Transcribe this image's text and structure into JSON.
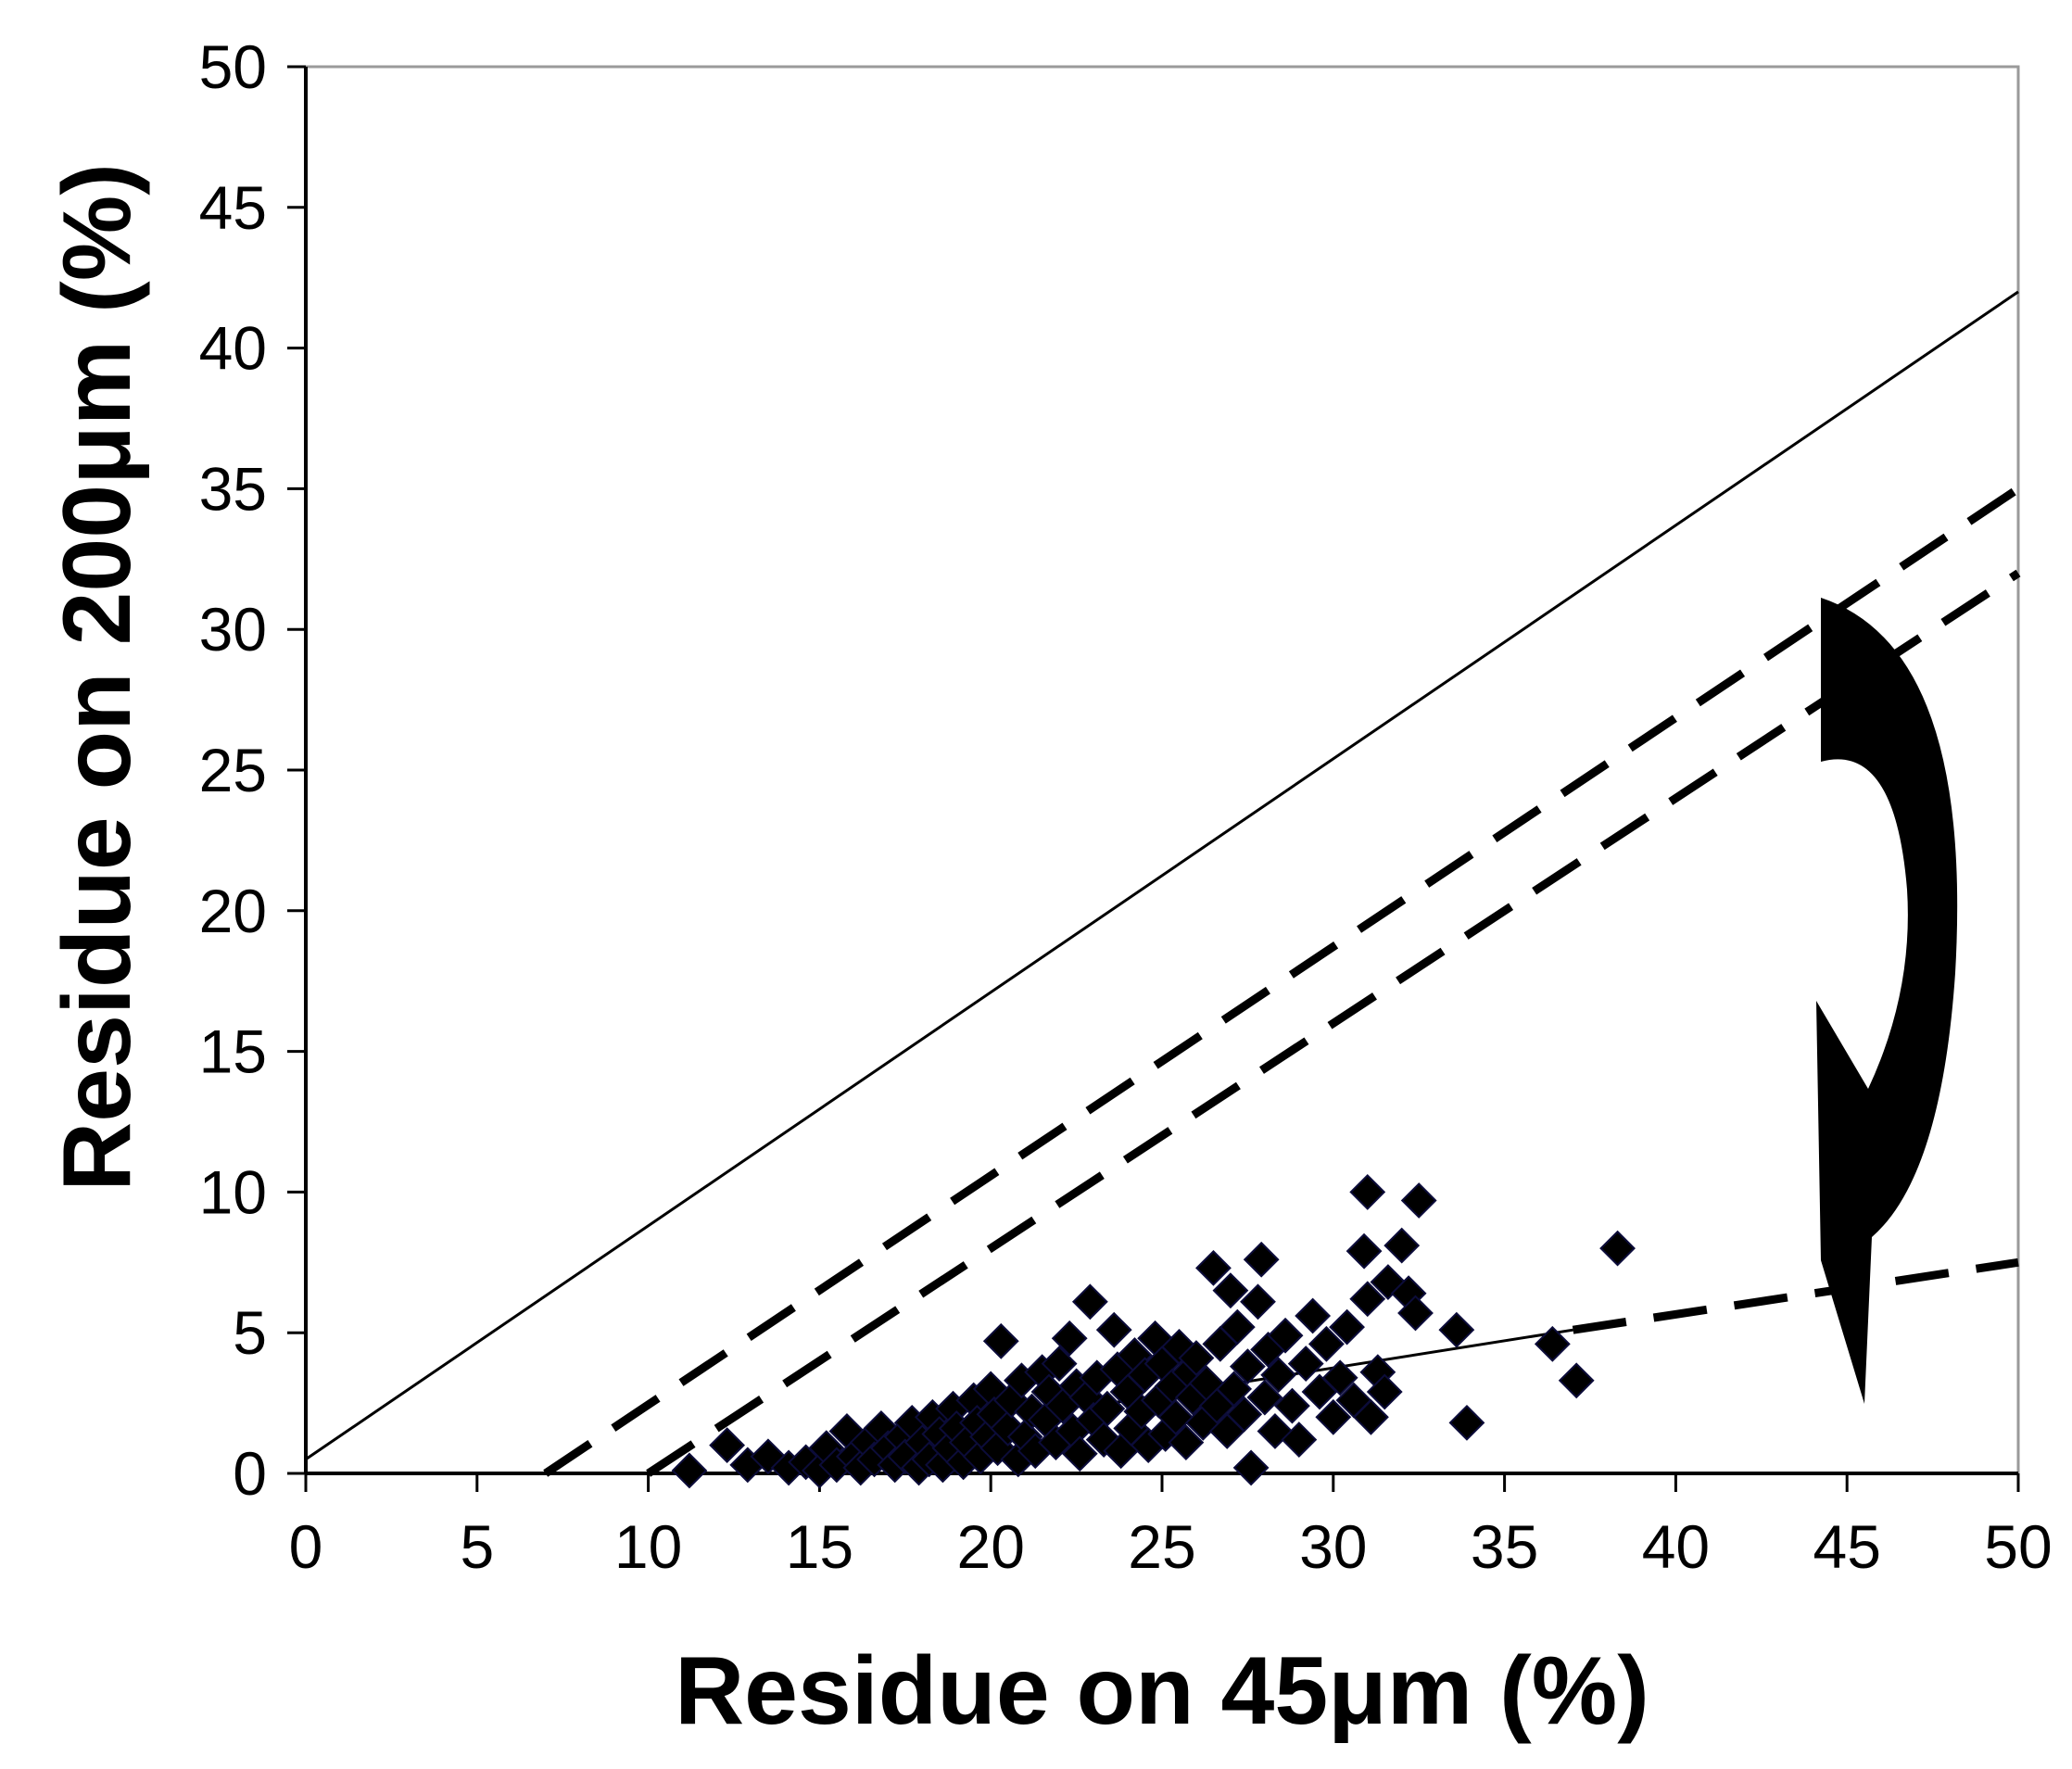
{
  "chart_data": {
    "type": "scatter",
    "title": "",
    "xlabel": "Residue on 45μm (%)",
    "ylabel": "Residue on 200μm (%)",
    "xlim": [
      0,
      50
    ],
    "ylim": [
      0,
      50
    ],
    "xticks": [
      "0",
      "5",
      "10",
      "15",
      "20",
      "25",
      "30",
      "35",
      "40",
      "45",
      "50"
    ],
    "yticks": [
      "0",
      "5",
      "10",
      "15",
      "20",
      "25",
      "30",
      "35",
      "40",
      "45",
      "50"
    ],
    "grid": false,
    "legend": "none",
    "colors": {
      "marker": "#0c0c3a",
      "line": "#000000"
    },
    "series": [
      {
        "marker": "diamond",
        "points": [
          [
            11.2,
            0.1
          ],
          [
            12.3,
            1.0
          ],
          [
            12.9,
            0.3
          ],
          [
            13.5,
            0.6
          ],
          [
            14.1,
            0.2
          ],
          [
            14.6,
            0.4
          ],
          [
            15.0,
            0.1
          ],
          [
            15.2,
            0.9
          ],
          [
            15.5,
            0.3
          ],
          [
            15.8,
            1.5
          ],
          [
            16.0,
            0.6
          ],
          [
            16.2,
            0.2
          ],
          [
            16.4,
            1.1
          ],
          [
            16.6,
            0.5
          ],
          [
            16.8,
            1.6
          ],
          [
            17.0,
            0.9
          ],
          [
            17.2,
            0.3
          ],
          [
            17.4,
            1.3
          ],
          [
            17.5,
            0.6
          ],
          [
            17.7,
            1.8
          ],
          [
            17.9,
            0.2
          ],
          [
            18.0,
            1.1
          ],
          [
            18.2,
            0.5
          ],
          [
            18.3,
            2.0
          ],
          [
            18.5,
            1.4
          ],
          [
            18.6,
            0.3
          ],
          [
            18.8,
            0.9
          ],
          [
            18.9,
            2.3
          ],
          [
            19.0,
            1.6
          ],
          [
            19.2,
            0.4
          ],
          [
            19.3,
            1.1
          ],
          [
            19.5,
            2.6
          ],
          [
            19.6,
            1.8
          ],
          [
            19.7,
            0.6
          ],
          [
            19.9,
            1.3
          ],
          [
            20.0,
            3.0
          ],
          [
            20.1,
            2.1
          ],
          [
            20.2,
            0.9
          ],
          [
            20.3,
            4.7
          ],
          [
            20.5,
            1.6
          ],
          [
            20.6,
            2.6
          ],
          [
            20.8,
            0.5
          ],
          [
            20.9,
            3.3
          ],
          [
            21.0,
            1.3
          ],
          [
            21.2,
            2.2
          ],
          [
            21.3,
            0.8
          ],
          [
            21.5,
            3.6
          ],
          [
            21.6,
            1.9
          ],
          [
            21.7,
            2.9
          ],
          [
            21.9,
            1.1
          ],
          [
            22.0,
            3.9
          ],
          [
            22.1,
            2.4
          ],
          [
            22.3,
            4.8
          ],
          [
            22.4,
            1.5
          ],
          [
            22.5,
            3.1
          ],
          [
            22.6,
            0.7
          ],
          [
            22.8,
            2.7
          ],
          [
            22.9,
            6.1
          ],
          [
            23.0,
            1.9
          ],
          [
            23.1,
            3.4
          ],
          [
            23.3,
            1.2
          ],
          [
            23.4,
            2.3
          ],
          [
            23.6,
            5.1
          ],
          [
            23.7,
            3.7
          ],
          [
            23.8,
            0.8
          ],
          [
            24.0,
            2.9
          ],
          [
            24.1,
            1.6
          ],
          [
            24.2,
            4.2
          ],
          [
            24.4,
            2.2
          ],
          [
            24.5,
            3.5
          ],
          [
            24.6,
            1.0
          ],
          [
            24.8,
            4.8
          ],
          [
            24.9,
            2.6
          ],
          [
            25.0,
            3.9
          ],
          [
            25.1,
            1.4
          ],
          [
            25.3,
            3.1
          ],
          [
            25.4,
            2.0
          ],
          [
            25.5,
            4.5
          ],
          [
            25.7,
            1.1
          ],
          [
            25.8,
            3.6
          ],
          [
            25.9,
            2.7
          ],
          [
            26.0,
            4.1
          ],
          [
            26.2,
            1.8
          ],
          [
            26.3,
            3.2
          ],
          [
            26.5,
            7.3
          ],
          [
            26.6,
            2.4
          ],
          [
            26.7,
            4.6
          ],
          [
            26.9,
            1.5
          ],
          [
            27.0,
            6.5
          ],
          [
            27.1,
            3.0
          ],
          [
            27.2,
            5.2
          ],
          [
            27.4,
            2.1
          ],
          [
            27.5,
            3.8
          ],
          [
            27.6,
            0.2
          ],
          [
            27.8,
            6.1
          ],
          [
            27.9,
            7.6
          ],
          [
            28.0,
            2.7
          ],
          [
            28.1,
            4.4
          ],
          [
            28.3,
            1.5
          ],
          [
            28.4,
            3.5
          ],
          [
            28.6,
            4.9
          ],
          [
            28.8,
            2.4
          ],
          [
            29.0,
            1.2
          ],
          [
            29.2,
            3.9
          ],
          [
            29.4,
            5.6
          ],
          [
            29.6,
            2.9
          ],
          [
            29.8,
            4.6
          ],
          [
            30.0,
            2.0
          ],
          [
            30.2,
            3.4
          ],
          [
            30.4,
            5.2
          ],
          [
            30.6,
            2.6
          ],
          [
            30.9,
            7.9
          ],
          [
            31.0,
            10.0
          ],
          [
            31.0,
            6.2
          ],
          [
            31.1,
            2.0
          ],
          [
            31.3,
            3.6
          ],
          [
            31.5,
            2.9
          ],
          [
            31.6,
            6.8
          ],
          [
            32.0,
            8.1
          ],
          [
            32.2,
            6.4
          ],
          [
            32.5,
            9.7
          ],
          [
            32.4,
            5.7
          ],
          [
            33.6,
            5.1
          ],
          [
            33.9,
            1.8
          ],
          [
            36.4,
            4.6
          ],
          [
            37.1,
            3.3
          ],
          [
            38.3,
            8.0
          ]
        ]
      }
    ],
    "lines": [
      {
        "style": "solid",
        "points": [
          [
            0,
            0.5
          ],
          [
            50,
            42
          ]
        ]
      },
      {
        "style": "dashed",
        "points": [
          [
            7,
            0
          ],
          [
            50,
            35
          ]
        ]
      },
      {
        "style": "dashed",
        "points": [
          [
            10,
            0
          ],
          [
            50,
            32
          ]
        ]
      },
      {
        "style": "solid-thin",
        "points": [
          [
            23,
            2.4
          ],
          [
            37,
            5.1
          ]
        ]
      },
      {
        "style": "dashed",
        "points": [
          [
            37,
            5.1
          ],
          [
            50,
            7.5
          ]
        ]
      }
    ],
    "annotations": [
      {
        "type": "curved-arrow",
        "from": [
          46.5,
          31
        ],
        "to": [
          45.5,
          2.5
        ]
      }
    ]
  }
}
